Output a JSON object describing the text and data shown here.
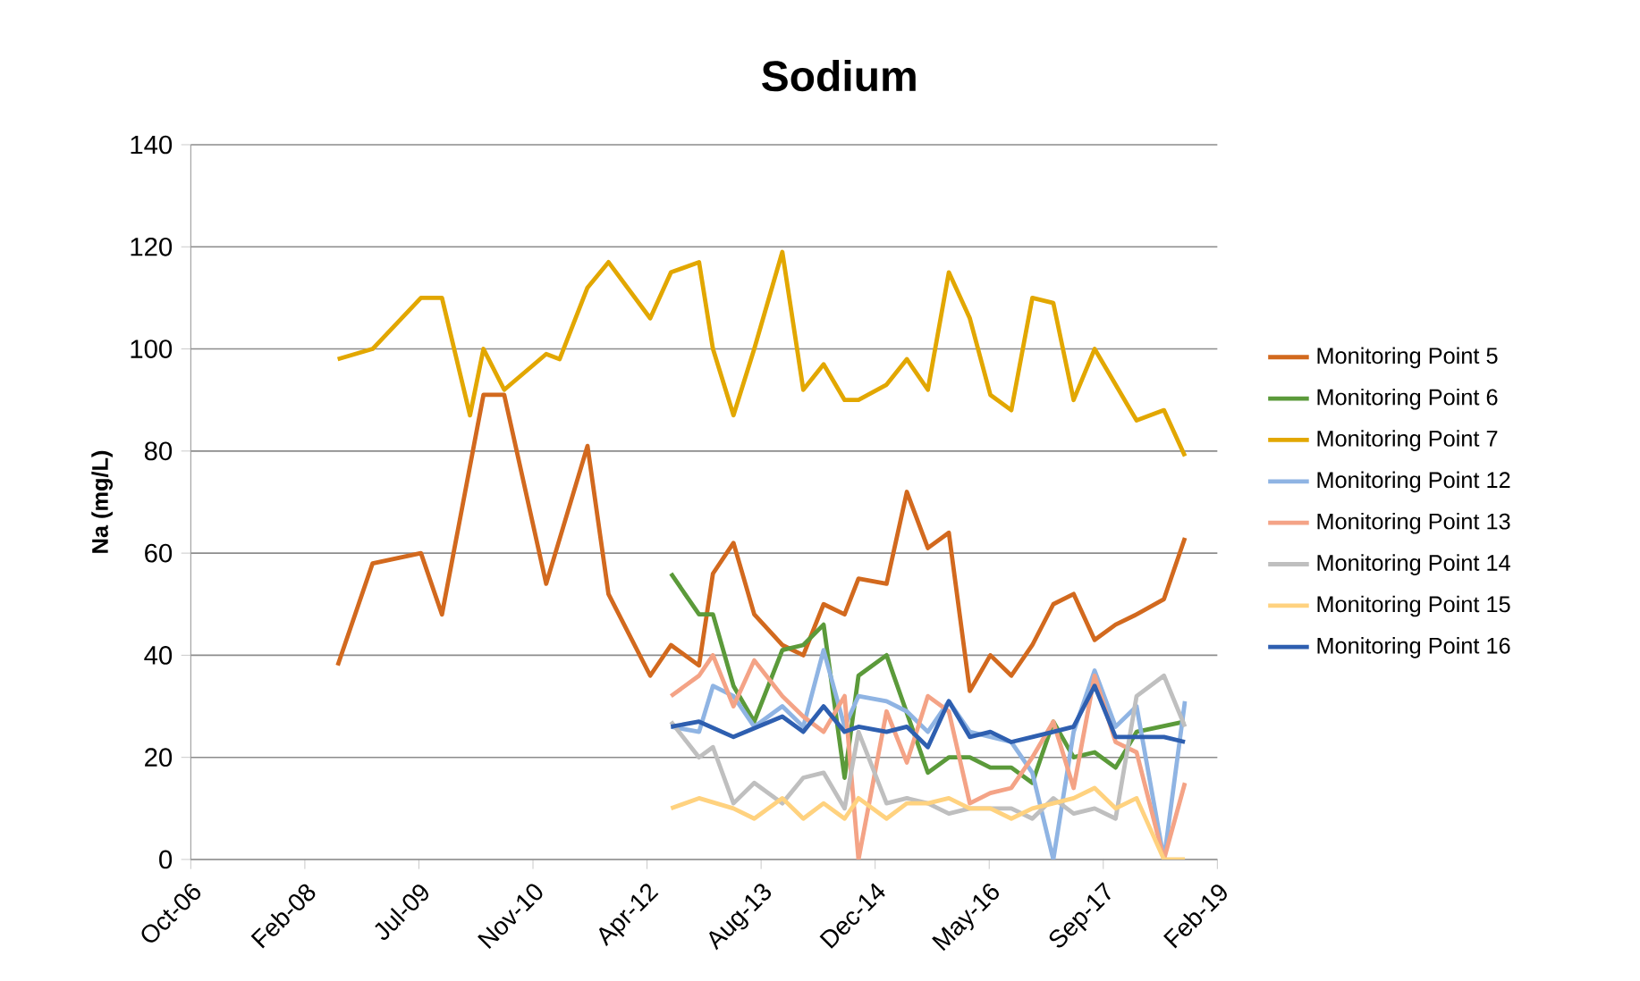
{
  "chart_data": {
    "type": "line",
    "title": "Sodium",
    "ylabel": "Na (mg/L)",
    "xlim": [
      "2006-10-10",
      "2019-02-04"
    ],
    "xticks": [
      {
        "value": "2006-10-10",
        "label": "Oct-06"
      },
      {
        "value": "2008-02-22",
        "label": "Feb-08"
      },
      {
        "value": "2009-07-06",
        "label": "Jul-09"
      },
      {
        "value": "2010-11-18",
        "label": "Nov-10"
      },
      {
        "value": "2012-04-01",
        "label": "Apr-12"
      },
      {
        "value": "2013-08-14",
        "label": "Aug-13"
      },
      {
        "value": "2014-12-27",
        "label": "Dec-14"
      },
      {
        "value": "2016-05-10",
        "label": "May-16"
      },
      {
        "value": "2017-09-22",
        "label": "Sep-17"
      },
      {
        "value": "2019-02-04",
        "label": "Feb-19"
      }
    ],
    "ylim": [
      0,
      140
    ],
    "yticks": [
      0,
      20,
      40,
      60,
      80,
      100,
      120,
      140
    ],
    "grid": "y",
    "legend": "right",
    "marker": "none",
    "line_style": "solid",
    "series": [
      {
        "name": "Monitoring Point 5",
        "color": "#d2691e",
        "x": [
          "2008-07",
          "2008-12",
          "2009-07",
          "2009-10",
          "2010-04",
          "2010-07",
          "2011-01",
          "2011-07",
          "2011-10",
          "2012-04",
          "2012-07",
          "2012-11",
          "2013-01",
          "2013-04",
          "2013-07",
          "2013-11",
          "2014-02",
          "2014-05",
          "2014-08",
          "2014-10",
          "2015-02",
          "2015-05",
          "2015-08",
          "2015-11",
          "2016-02",
          "2016-05",
          "2016-08",
          "2016-11",
          "2017-02",
          "2017-05",
          "2017-08",
          "2017-11",
          "2018-02",
          "2018-06",
          "2018-09"
        ],
        "values": [
          38,
          58,
          60,
          48,
          91,
          91,
          54,
          81,
          52,
          36,
          42,
          38,
          56,
          62,
          48,
          42,
          40,
          50,
          48,
          55,
          54,
          72,
          61,
          64,
          33,
          40,
          36,
          42,
          50,
          52,
          43,
          46,
          48,
          51,
          63
        ]
      },
      {
        "name": "Monitoring Point 6",
        "color": "#5b9a3a",
        "x": [
          "2012-07",
          "2012-11",
          "2013-01",
          "2013-04",
          "2013-07",
          "2013-11",
          "2014-02",
          "2014-05",
          "2014-08",
          "2014-10",
          "2015-02",
          "2015-08",
          "2015-11",
          "2016-02",
          "2016-05",
          "2016-08",
          "2016-11",
          "2017-02",
          "2017-05",
          "2017-08",
          "2017-11",
          "2018-02",
          "2018-09"
        ],
        "values": [
          56,
          48,
          48,
          34,
          27,
          41,
          42,
          46,
          16,
          36,
          40,
          17,
          20,
          20,
          18,
          18,
          15,
          27,
          20,
          21,
          18,
          25,
          27
        ]
      },
      {
        "name": "Monitoring Point 7",
        "color": "#e2a700",
        "x": [
          "2008-07",
          "2008-12",
          "2009-07",
          "2009-10",
          "2010-02",
          "2010-04",
          "2010-07",
          "2011-01",
          "2011-03",
          "2011-07",
          "2011-10",
          "2012-04",
          "2012-07",
          "2012-11",
          "2013-01",
          "2013-04",
          "2013-07",
          "2013-11",
          "2014-02",
          "2014-05",
          "2014-08",
          "2014-10",
          "2015-02",
          "2015-05",
          "2015-08",
          "2015-11",
          "2016-02",
          "2016-05",
          "2016-08",
          "2016-11",
          "2017-02",
          "2017-05",
          "2017-08",
          "2017-11",
          "2018-02",
          "2018-06",
          "2018-09"
        ],
        "values": [
          98,
          100,
          110,
          110,
          87,
          100,
          92,
          99,
          98,
          112,
          117,
          106,
          115,
          117,
          100,
          87,
          100,
          119,
          92,
          97,
          90,
          90,
          93,
          98,
          92,
          115,
          106,
          91,
          88,
          110,
          109,
          90,
          100,
          93,
          86,
          88,
          79
        ]
      },
      {
        "name": "Monitoring Point 12",
        "color": "#8fb4e3",
        "x": [
          "2012-07",
          "2012-11",
          "2013-01",
          "2013-04",
          "2013-07",
          "2013-11",
          "2014-02",
          "2014-05",
          "2014-08",
          "2014-10",
          "2015-02",
          "2015-05",
          "2015-08",
          "2015-11",
          "2016-02",
          "2016-08",
          "2016-11",
          "2017-02",
          "2017-05",
          "2017-08",
          "2017-11",
          "2018-02",
          "2018-06",
          "2018-09"
        ],
        "values": [
          26,
          25,
          34,
          32,
          26,
          30,
          26,
          41,
          26,
          32,
          31,
          29,
          25,
          31,
          25,
          23,
          17,
          0,
          25,
          37,
          26,
          30,
          0,
          31
        ]
      },
      {
        "name": "Monitoring Point 13",
        "color": "#f4a386",
        "x": [
          "2012-07",
          "2012-11",
          "2013-01",
          "2013-04",
          "2013-07",
          "2013-11",
          "2014-02",
          "2014-05",
          "2014-08",
          "2014-10",
          "2015-02",
          "2015-05",
          "2015-08",
          "2015-11",
          "2016-02",
          "2016-05",
          "2016-08",
          "2016-11",
          "2017-02",
          "2017-05",
          "2017-08",
          "2017-11",
          "2018-02",
          "2018-06",
          "2018-09"
        ],
        "values": [
          32,
          36,
          40,
          30,
          39,
          32,
          28,
          25,
          32,
          0,
          29,
          19,
          32,
          29,
          11,
          13,
          14,
          20,
          27,
          14,
          36,
          23,
          21,
          0,
          15
        ]
      },
      {
        "name": "Monitoring Point 14",
        "color": "#bfbfbf",
        "x": [
          "2012-07",
          "2012-11",
          "2013-01",
          "2013-04",
          "2013-07",
          "2013-11",
          "2014-02",
          "2014-05",
          "2014-08",
          "2014-10",
          "2015-02",
          "2015-05",
          "2015-08",
          "2015-11",
          "2016-02",
          "2016-05",
          "2016-08",
          "2016-11",
          "2017-02",
          "2017-05",
          "2017-08",
          "2017-11",
          "2018-02",
          "2018-06",
          "2018-09"
        ],
        "values": [
          27,
          20,
          22,
          11,
          15,
          11,
          16,
          17,
          10,
          25,
          11,
          12,
          11,
          9,
          10,
          10,
          10,
          8,
          12,
          9,
          10,
          8,
          32,
          36,
          26
        ]
      },
      {
        "name": "Monitoring Point 15",
        "color": "#ffd27f",
        "x": [
          "2012-07",
          "2012-11",
          "2013-04",
          "2013-07",
          "2013-11",
          "2014-02",
          "2014-05",
          "2014-08",
          "2014-10",
          "2015-02",
          "2015-05",
          "2015-08",
          "2015-11",
          "2016-02",
          "2016-05",
          "2016-08",
          "2016-11",
          "2017-02",
          "2017-05",
          "2017-08",
          "2017-11",
          "2018-02",
          "2018-06",
          "2018-09"
        ],
        "values": [
          10,
          12,
          10,
          8,
          12,
          8,
          11,
          8,
          12,
          8,
          11,
          11,
          12,
          10,
          10,
          8,
          10,
          11,
          12,
          14,
          10,
          12,
          0,
          0
        ]
      },
      {
        "name": "Monitoring Point 16",
        "color": "#2e5fb0",
        "x": [
          "2012-07",
          "2012-11",
          "2013-04",
          "2013-11",
          "2014-02",
          "2014-05",
          "2014-08",
          "2014-10",
          "2015-02",
          "2015-05",
          "2015-08",
          "2015-11",
          "2016-02",
          "2016-05",
          "2016-08",
          "2016-11",
          "2017-02",
          "2017-05",
          "2017-08",
          "2017-11",
          "2018-02",
          "2018-06",
          "2018-09"
        ],
        "values": [
          26,
          27,
          24,
          28,
          25,
          30,
          25,
          26,
          25,
          26,
          22,
          31,
          24,
          25,
          23,
          24,
          25,
          26,
          34,
          24,
          24,
          24,
          23
        ]
      }
    ]
  }
}
